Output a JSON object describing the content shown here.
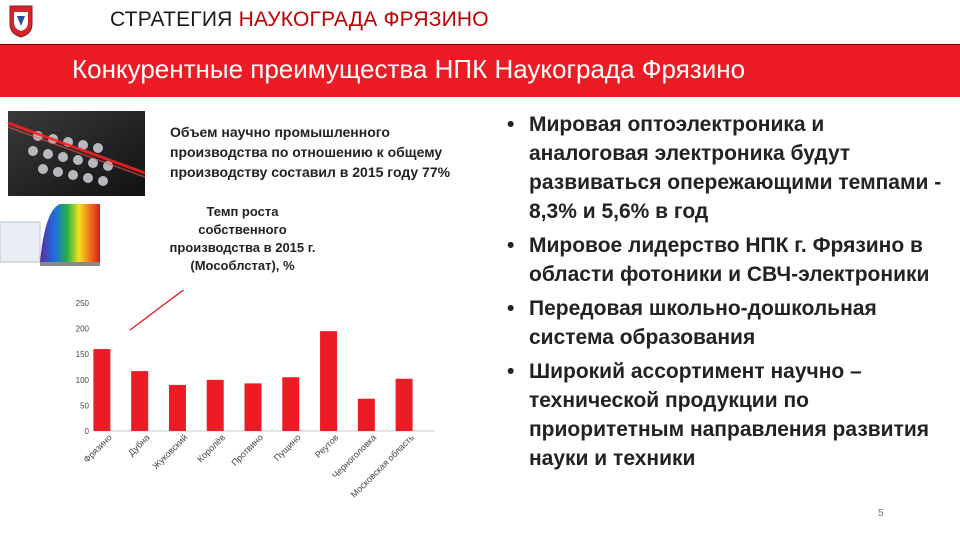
{
  "header": {
    "title_part1": "СТРАТЕГИЯ",
    "title_part2": "НАУКОГРАДА ФРЯЗИНО"
  },
  "banner": {
    "title": "Конкурентные преимущества НПК Наукограда Фрязино"
  },
  "captions": {
    "production_share": "Объем научно промышленного производства по отношению к общему производству составил в 2015 году 77%",
    "growth_rate": "Темп роста собственного производства в 2015 г. (Мособлстат), %"
  },
  "bullets": [
    "Мировая оптоэлектроника и аналоговая электроника будут развиваться опережающими темпами - 8,3% и 5,6% в год",
    "Мировое лидерство НПК г. Фрязино в области фотоники и СВЧ-электроники",
    "Передовая школьно-дошкольная система образования",
    "Широкий ассортимент научно – технической продукции по приоритетным направления развития науки и техники"
  ],
  "page_number": "5",
  "colors": {
    "accent": "#ed1c24",
    "bar": "#ed1c24",
    "title_accent": "#c00000"
  },
  "chart_data": {
    "type": "bar",
    "categories": [
      "Фрязино",
      "Дубна",
      "Жуковский",
      "Королёв",
      "Протвино",
      "Пущино",
      "Реутов",
      "Черноголовка",
      "Московская область"
    ],
    "values": [
      160,
      117,
      90,
      100,
      93,
      105,
      195,
      63,
      102
    ],
    "ylim": [
      0,
      250
    ],
    "yticks": [
      0,
      50,
      100,
      150,
      200,
      250
    ],
    "grid": false
  }
}
